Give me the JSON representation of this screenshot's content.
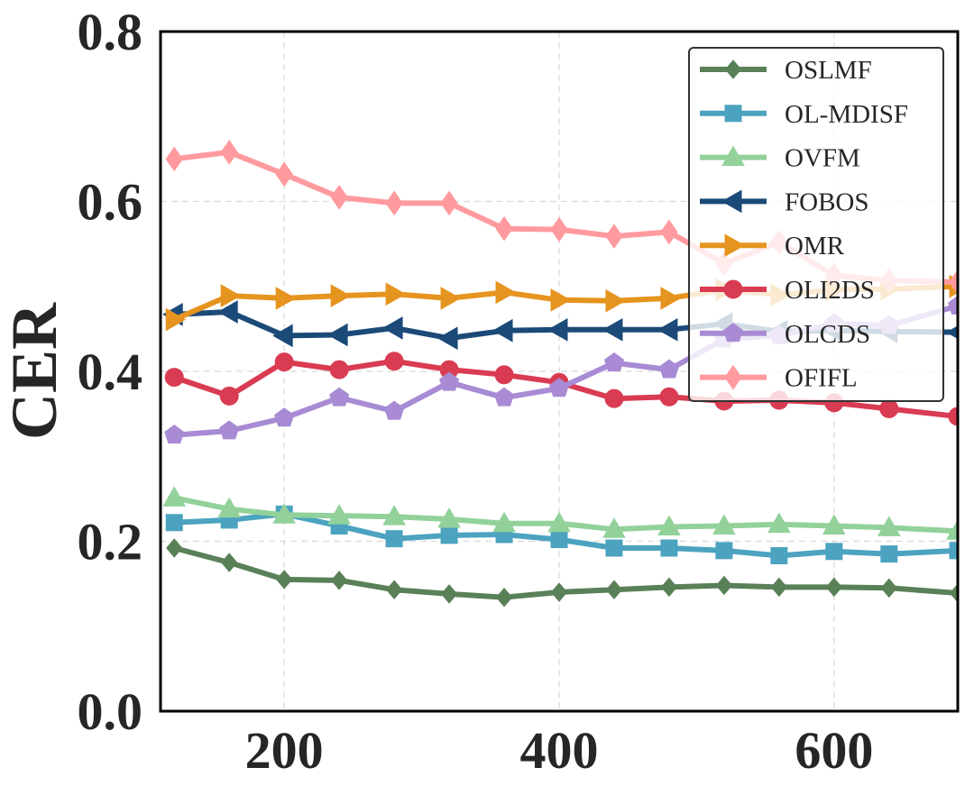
{
  "chart_data": {
    "type": "line",
    "title": "",
    "xlabel": "",
    "ylabel": "CER",
    "xlim": [
      110,
      690
    ],
    "ylim": [
      0.0,
      0.8
    ],
    "x_ticks": [
      200,
      400,
      600
    ],
    "x_tick_labels": [
      "200",
      "400",
      "600"
    ],
    "y_ticks": [
      0.0,
      0.2,
      0.4,
      0.6,
      0.8
    ],
    "y_tick_labels": [
      "0.0",
      "0.2",
      "0.4",
      "0.6",
      "0.8"
    ],
    "grid": true,
    "legend_position": "top-right",
    "x": [
      120,
      160,
      200,
      240,
      280,
      320,
      360,
      400,
      440,
      480,
      520,
      560,
      600,
      640,
      690
    ],
    "series": [
      {
        "name": "OSLMF",
        "color": "#5a8058",
        "marker": "diamond",
        "values": [
          0.192,
          0.175,
          0.155,
          0.154,
          0.143,
          0.138,
          0.134,
          0.14,
          0.143,
          0.146,
          0.148,
          0.146,
          0.146,
          0.145,
          0.139
        ]
      },
      {
        "name": "OL-MDISF",
        "color": "#4ca3bf",
        "marker": "square",
        "values": [
          0.222,
          0.225,
          0.232,
          0.218,
          0.203,
          0.207,
          0.208,
          0.202,
          0.192,
          0.192,
          0.189,
          0.183,
          0.188,
          0.185,
          0.189
        ]
      },
      {
        "name": "OVFM",
        "color": "#92d19a",
        "marker": "triangle-up",
        "values": [
          0.251,
          0.238,
          0.231,
          0.23,
          0.229,
          0.226,
          0.221,
          0.221,
          0.214,
          0.217,
          0.218,
          0.22,
          0.218,
          0.216,
          0.212
        ]
      },
      {
        "name": "FOBOS",
        "color": "#1c4a78",
        "marker": "triangle-left",
        "values": [
          0.467,
          0.47,
          0.442,
          0.443,
          0.451,
          0.439,
          0.448,
          0.449,
          0.449,
          0.449,
          0.456,
          0.447,
          0.448,
          0.447,
          0.446
        ]
      },
      {
        "name": "OMR",
        "color": "#e5941f",
        "marker": "triangle-right",
        "values": [
          0.461,
          0.489,
          0.486,
          0.489,
          0.491,
          0.486,
          0.493,
          0.484,
          0.483,
          0.486,
          0.496,
          0.49,
          0.496,
          0.497,
          0.5
        ]
      },
      {
        "name": "OLI2DS",
        "color": "#d93c52",
        "marker": "circle",
        "values": [
          0.393,
          0.371,
          0.411,
          0.402,
          0.412,
          0.402,
          0.396,
          0.387,
          0.368,
          0.37,
          0.365,
          0.366,
          0.363,
          0.356,
          0.347
        ]
      },
      {
        "name": "OLCDS",
        "color": "#a88bd4",
        "marker": "pentagon",
        "values": [
          0.325,
          0.33,
          0.345,
          0.369,
          0.353,
          0.387,
          0.369,
          0.38,
          0.41,
          0.402,
          0.438,
          0.442,
          0.456,
          0.454,
          0.477
        ]
      },
      {
        "name": "OFIFL",
        "color": "#ff9a9e",
        "marker": "thin-diamond",
        "values": [
          0.65,
          0.658,
          0.632,
          0.605,
          0.598,
          0.598,
          0.568,
          0.567,
          0.559,
          0.564,
          0.527,
          0.552,
          0.513,
          0.507,
          0.505
        ]
      }
    ]
  }
}
